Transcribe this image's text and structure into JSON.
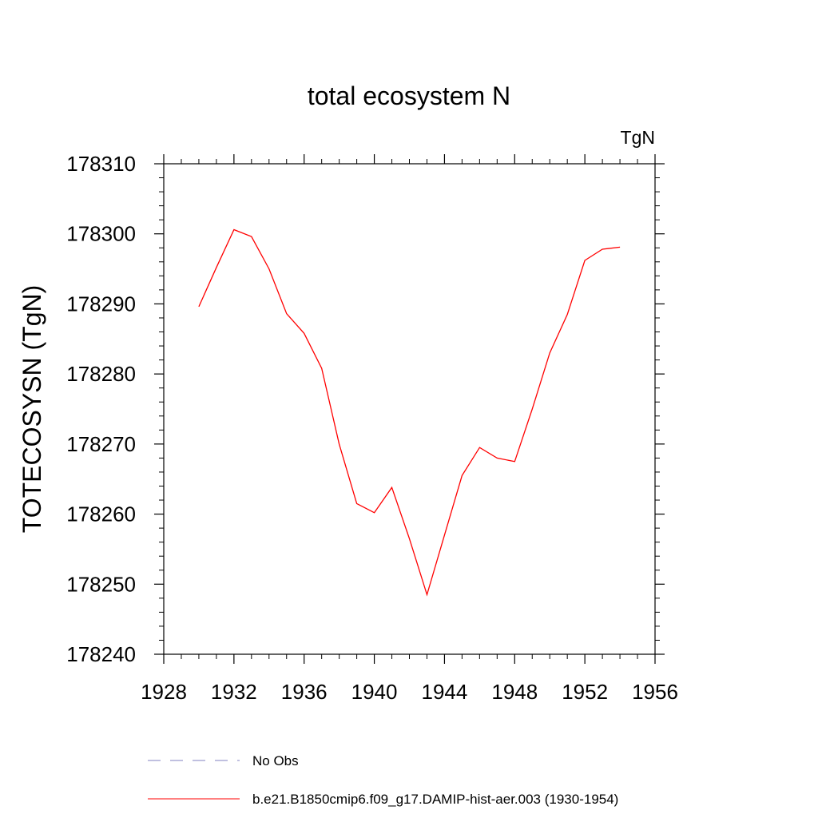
{
  "chart_data": {
    "type": "line",
    "title": "total ecosystem N",
    "units_label": "TgN",
    "ylabel": "TOTECOSYSN  (TgN)",
    "xlabel": "",
    "xlim": [
      1928,
      1956
    ],
    "ylim": [
      178240,
      178310
    ],
    "x_ticks": [
      1928,
      1932,
      1936,
      1940,
      1944,
      1948,
      1952,
      1956
    ],
    "y_ticks": [
      178240,
      178250,
      178260,
      178270,
      178280,
      178290,
      178300,
      178310
    ],
    "x_tick_labels": [
      "1928",
      "1932",
      "1936",
      "1940",
      "1944",
      "1948",
      "1952",
      "1956"
    ],
    "y_tick_labels": [
      "178240",
      "178250",
      "178260",
      "178270",
      "178280",
      "178290",
      "178300",
      "178310"
    ],
    "grid": false,
    "legend_position": "bottom",
    "series": [
      {
        "name": "b.e21.B1850cmip6.f09_g17.DAMIP-hist-aer.003 (1930-1954)",
        "color": "#ff0000",
        "style": "solid",
        "x": [
          1930,
          1931,
          1932,
          1933,
          1934,
          1935,
          1936,
          1937,
          1938,
          1939,
          1940,
          1941,
          1942,
          1943,
          1944,
          1945,
          1946,
          1947,
          1948,
          1949,
          1950,
          1951,
          1952,
          1953,
          1954
        ],
        "y": [
          178289.6,
          178295.2,
          178300.6,
          178299.6,
          178295.0,
          178288.6,
          178285.8,
          178280.8,
          178270.0,
          178261.5,
          178260.2,
          178263.8,
          178256.5,
          178248.5,
          178257.0,
          178265.5,
          178269.5,
          178268.0,
          178267.5,
          178275.0,
          178283.0,
          178288.5,
          178296.2,
          178297.8,
          178298.1
        ]
      }
    ],
    "legend": [
      {
        "label": "No Obs",
        "color": "#8080c0",
        "style": "dashed"
      },
      {
        "label": "b.e21.B1850cmip6.f09_g17.DAMIP-hist-aer.003 (1930-1954)",
        "color": "#ff0000",
        "style": "solid"
      }
    ]
  }
}
